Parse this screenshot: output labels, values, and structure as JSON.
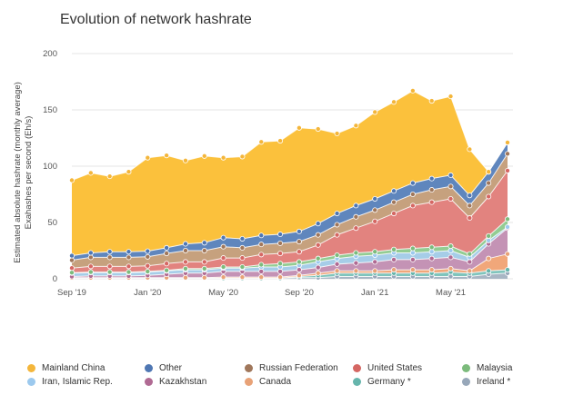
{
  "chart_data": {
    "type": "area",
    "stacked": true,
    "title": "Evolution of network hashrate",
    "ylabel_lines": [
      "Estimated absolute hashrate (monthly average)",
      "Exahashes per second (Eh/s)"
    ],
    "xlabel": "",
    "ylim": [
      0,
      200
    ],
    "yticks": [
      0,
      50,
      100,
      150,
      200
    ],
    "x": [
      "Sep '19",
      "Oct '19",
      "Nov '19",
      "Dec '19",
      "Jan '20",
      "Feb '20",
      "Mar '20",
      "Apr '20",
      "May '20",
      "Jun '20",
      "Jul '20",
      "Aug '20",
      "Sep '20",
      "Oct '20",
      "Nov '20",
      "Dec '20",
      "Jan '21",
      "Feb '21",
      "Mar '21",
      "Apr '21",
      "May '21",
      "Jun '21",
      "Jul '21",
      "Aug '21"
    ],
    "xtick_labels": [
      {
        "index": 0,
        "label": "Sep '19"
      },
      {
        "index": 4,
        "label": "Jan '20"
      },
      {
        "index": 8,
        "label": "May '20"
      },
      {
        "index": 12,
        "label": "Sep '20"
      },
      {
        "index": 16,
        "label": "Jan '21"
      },
      {
        "index": 20,
        "label": "May '21"
      }
    ],
    "grid": true,
    "legend_position": "bottom",
    "series": [
      {
        "name": "Ireland *",
        "color": "#a8b6c4",
        "values": [
          0.5,
          0.5,
          0.5,
          0.5,
          0.5,
          0.5,
          0.5,
          0.5,
          0.5,
          0.5,
          0.5,
          0.5,
          1,
          1,
          2,
          2,
          2,
          2,
          2,
          2,
          2,
          2,
          4,
          5
        ]
      },
      {
        "name": "Germany *",
        "color": "#7fc4bc",
        "values": [
          0,
          0,
          0,
          0,
          0,
          0,
          0,
          0,
          0,
          0,
          0,
          0,
          1,
          2,
          3,
          3,
          3,
          3,
          3,
          3,
          4,
          3,
          3,
          3
        ]
      },
      {
        "name": "Canada",
        "color": "#f1a77a",
        "values": [
          0.5,
          0.5,
          0.5,
          0.5,
          0.5,
          0.5,
          0.5,
          0.5,
          1,
          1,
          1,
          1,
          1,
          2,
          2,
          2,
          2,
          3,
          3,
          3,
          3,
          2,
          11,
          14
        ]
      },
      {
        "name": "Kazakhstan",
        "color": "#c493b5",
        "values": [
          1,
          1.5,
          1.5,
          1.5,
          2,
          3,
          4,
          4,
          5,
          5,
          5,
          5,
          5,
          5,
          6,
          7,
          8,
          9,
          9,
          10,
          10,
          8,
          13,
          23
        ]
      },
      {
        "name": "Iran, Islamic Rep.",
        "color": "#a6cde8",
        "values": [
          3,
          3,
          3,
          3,
          3,
          3,
          3,
          3,
          3,
          3,
          4,
          4,
          4,
          5,
          5,
          6,
          6,
          6,
          6,
          6,
          6,
          4,
          3,
          1
        ]
      },
      {
        "name": "Malaysia",
        "color": "#93cc93",
        "values": [
          0.5,
          0.5,
          0.5,
          0.5,
          0.5,
          0.5,
          1,
          1,
          1,
          1,
          2,
          3,
          3,
          3,
          3,
          3,
          3,
          3,
          4,
          4,
          4,
          3,
          4,
          7
        ]
      },
      {
        "name": "United States",
        "color": "#e2837f",
        "values": [
          4,
          5,
          5,
          5,
          5,
          6,
          6,
          6,
          8,
          8,
          9,
          9,
          9,
          12,
          18,
          22,
          27,
          32,
          38,
          40,
          42,
          32,
          35,
          43
        ]
      },
      {
        "name": "Russian Federation",
        "color": "#c6a17e",
        "values": [
          7,
          8,
          8,
          8,
          8,
          9,
          10,
          10,
          10,
          9,
          9,
          9,
          9,
          9,
          9,
          10,
          10,
          10,
          10,
          11,
          11,
          11,
          12,
          15
        ]
      },
      {
        "name": "Other",
        "color": "#5f86bd",
        "values": [
          4,
          4,
          5,
          5,
          5,
          5,
          6,
          7,
          8,
          8,
          8,
          8,
          9,
          10,
          10,
          10,
          10,
          10,
          10,
          10,
          10,
          9,
          10,
          10
        ]
      },
      {
        "name": "Mainland China",
        "color": "#fbc13c",
        "values": [
          67,
          71,
          67,
          71,
          83,
          82,
          74,
          77,
          71,
          73,
          83,
          83,
          92,
          84,
          71,
          71,
          77,
          79,
          82,
          69,
          70,
          41,
          0,
          0
        ]
      }
    ]
  },
  "legend": [
    {
      "name": "Mainland China",
      "color": "#f4b63b"
    },
    {
      "name": "Other",
      "color": "#4f77b3"
    },
    {
      "name": "Russian Federation",
      "color": "#a0775b"
    },
    {
      "name": "United States",
      "color": "#d56763"
    },
    {
      "name": "Malaysia",
      "color": "#7cbb7c"
    },
    {
      "name": "Iran, Islamic Rep.",
      "color": "#9cc9ee"
    },
    {
      "name": "Kazakhstan",
      "color": "#b06a93"
    },
    {
      "name": "Canada",
      "color": "#e8a277"
    },
    {
      "name": "Germany *",
      "color": "#66b5ac"
    },
    {
      "name": "Ireland *",
      "color": "#97a7b9"
    }
  ]
}
